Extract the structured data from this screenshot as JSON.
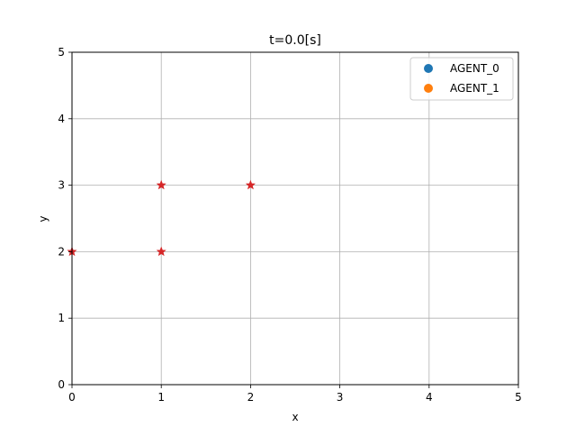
{
  "chart_data": {
    "type": "scatter",
    "title": "t=0.0[s]",
    "xlabel": "x",
    "ylabel": "y",
    "xlim": [
      0,
      5
    ],
    "ylim": [
      0,
      5
    ],
    "xticks": [
      0,
      1,
      2,
      3,
      4,
      5
    ],
    "yticks": [
      0,
      1,
      2,
      3,
      4,
      5
    ],
    "xtick_labels": [
      "0",
      "1",
      "2",
      "3",
      "4",
      "5"
    ],
    "ytick_labels": [
      "0",
      "1",
      "2",
      "3",
      "4",
      "5"
    ],
    "grid": true,
    "legend": {
      "placement": "top-right",
      "entries": [
        {
          "label": "AGENT_0",
          "color": "#1f77b4"
        },
        {
          "label": "AGENT_1",
          "color": "#ff7f0e"
        }
      ]
    },
    "series": [
      {
        "name": "AGENT_0",
        "points": []
      },
      {
        "name": "AGENT_1",
        "points": []
      }
    ],
    "markers": {
      "name": "star-markers",
      "color": "#d62728",
      "points": [
        {
          "x": 0,
          "y": 2
        },
        {
          "x": 1,
          "y": 2
        },
        {
          "x": 1,
          "y": 3
        },
        {
          "x": 2,
          "y": 3
        }
      ]
    }
  }
}
